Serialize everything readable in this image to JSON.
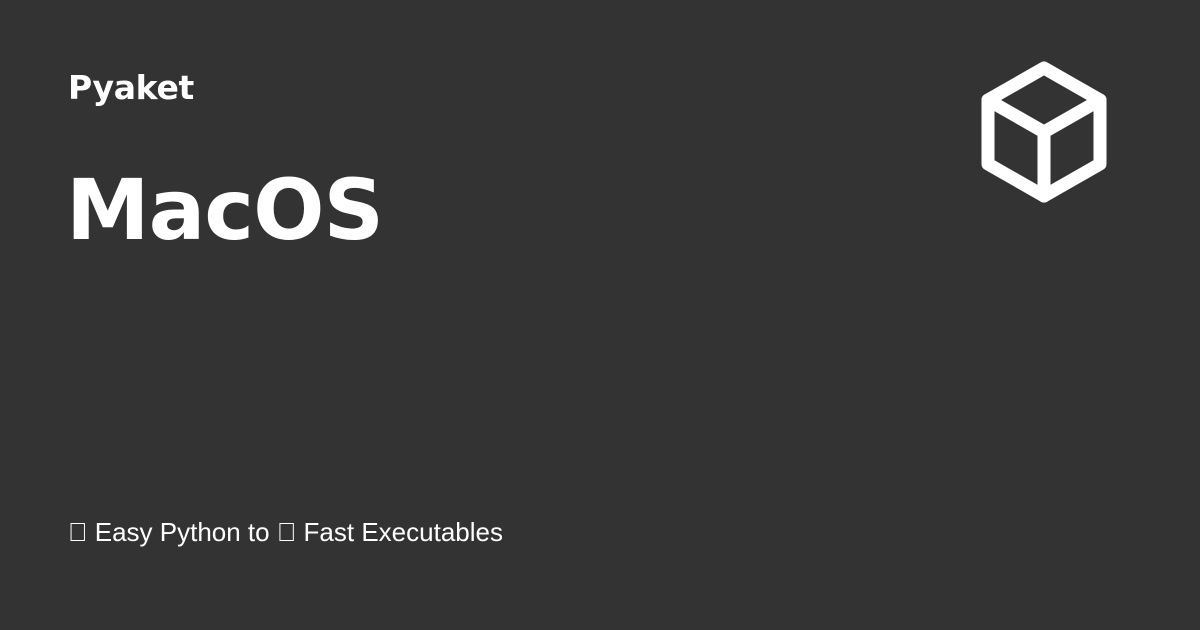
{
  "site": {
    "name": "Pyaket"
  },
  "page": {
    "title": "MacOS",
    "tagline": "\u0000 Easy Python to \u0000 Fast Executables"
  },
  "logo": {
    "icon": "cube-icon",
    "color": "#ffffff"
  },
  "colors": {
    "background": "#333333",
    "text": "#ffffff"
  }
}
